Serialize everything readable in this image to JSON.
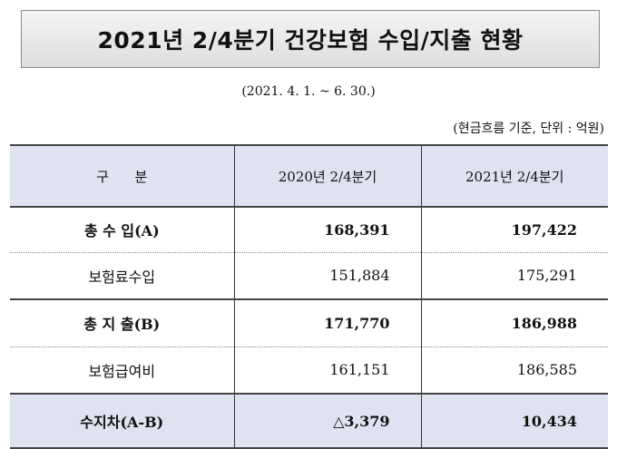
{
  "title": "2021년 2/4분기 건강보험 수입/지출 현황",
  "period": "(2021. 4. 1. ~ 6. 30.)",
  "unit_note": "(현금흐름 기준, 단위 : 억원)",
  "table": {
    "headers": [
      "구      분",
      "2020년 2/4분기",
      "2021년 2/4분기"
    ],
    "rows": [
      {
        "label": "총 수 입(A)",
        "v2020": "168,391",
        "v2021": "197,422"
      },
      {
        "label": "보험료수입",
        "v2020": "151,884",
        "v2021": "175,291"
      },
      {
        "label": "총 지 출(B)",
        "v2020": "171,770",
        "v2021": "186,988"
      },
      {
        "label": "보험급여비",
        "v2020": "161,151",
        "v2021": "186,585"
      },
      {
        "label": "수지차(A-B)",
        "v2020": "△3,379",
        "v2021": "10,434"
      }
    ]
  },
  "colors": {
    "header_bg": "#dfe3f1",
    "title_bg": "#e8e8e8"
  }
}
